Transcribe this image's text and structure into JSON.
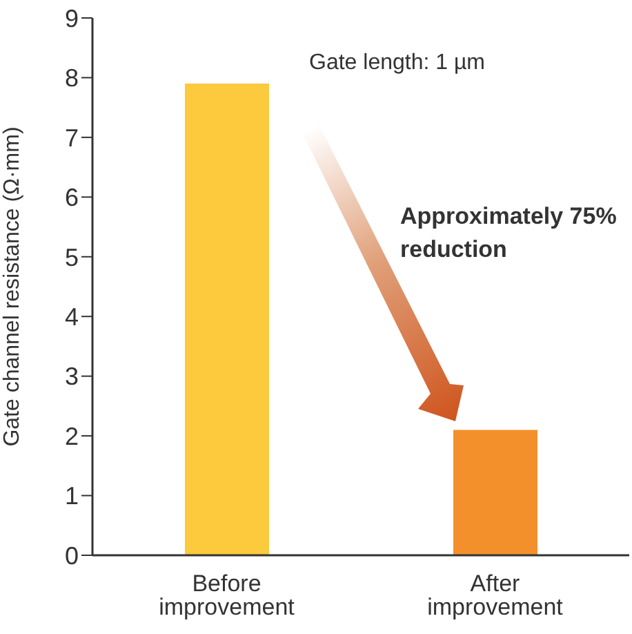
{
  "chart_data": {
    "type": "bar",
    "ylabel": "Gate channel resistance (Ω·mm)",
    "categories": [
      "Before improvement",
      "After improvement"
    ],
    "values": [
      7.9,
      2.1
    ],
    "colors": [
      "#fdc93d",
      "#f4902c"
    ],
    "ylim": [
      0,
      9
    ],
    "yticks": [
      0,
      1,
      2,
      3,
      4,
      5,
      6,
      7,
      8,
      9
    ],
    "grid": false,
    "legend": false,
    "annotations": [
      "Gate length: 1 µm",
      "Approximately 75% reduction"
    ]
  }
}
